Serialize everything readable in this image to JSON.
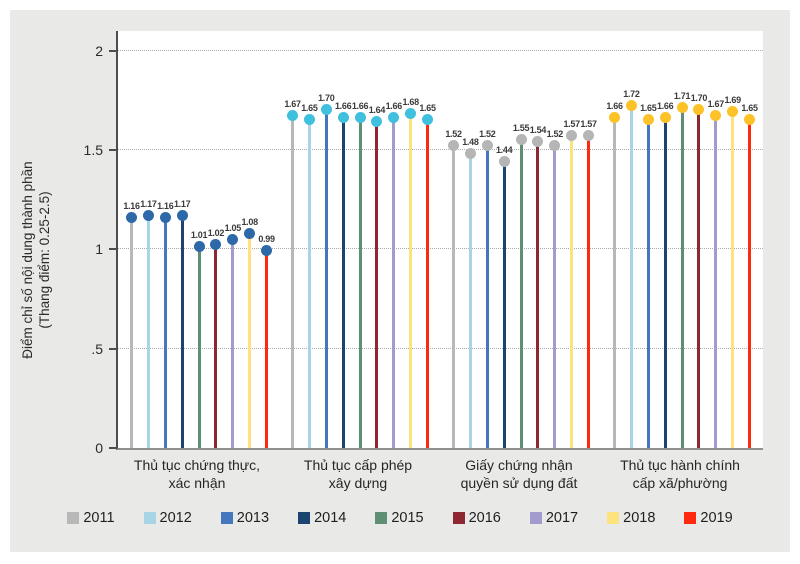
{
  "panel": {
    "background": "#e9e9e7"
  },
  "chart_data": {
    "type": "bar",
    "variant": "lollipop",
    "title": "",
    "xlabel": "",
    "ylabel_line1": "Điểm chỉ số nội dung thành phần",
    "ylabel_line2": "(Thang điểm: 0.25-2.5)",
    "ylim": [
      0,
      2.1
    ],
    "yticks": [
      {
        "label": "0",
        "value": 0
      },
      {
        "label": ".5",
        "value": 0.5
      },
      {
        "label": "1",
        "value": 1
      },
      {
        "label": "1.5",
        "value": 1.5
      },
      {
        "label": "2",
        "value": 2
      }
    ],
    "grid": "horizontal dotted lines at 0.5, 1, 1.5, 2",
    "legend_position": "bottom",
    "categories": [
      "Thủ tục chứng thực,\nxác nhận",
      "Thủ tục cấp phép\nxây dựng",
      "Giấy chứng nhận\nquyền sử dụng đất",
      "Thủ tục hành chính\ncấp xã/phường"
    ],
    "category_dot_colors": [
      "#2d68a8",
      "#3fc0dd",
      "#b5b5b5",
      "#fcc228"
    ],
    "series": [
      {
        "name": "2011",
        "color": "#b8b8b8",
        "values": [
          1.16,
          1.67,
          1.52,
          1.66
        ]
      },
      {
        "name": "2012",
        "color": "#a8d5e5",
        "values": [
          1.17,
          1.65,
          1.48,
          1.72
        ]
      },
      {
        "name": "2013",
        "color": "#4577be",
        "values": [
          1.16,
          1.7,
          1.52,
          1.65
        ]
      },
      {
        "name": "2014",
        "color": "#1b4570",
        "values": [
          1.17,
          1.66,
          1.44,
          1.66
        ]
      },
      {
        "name": "2015",
        "color": "#5e8f74",
        "values": [
          1.01,
          1.66,
          1.55,
          1.71
        ]
      },
      {
        "name": "2016",
        "color": "#8e2732",
        "values": [
          1.02,
          1.64,
          1.54,
          1.7
        ]
      },
      {
        "name": "2017",
        "color": "#a29bcd",
        "values": [
          1.05,
          1.66,
          1.52,
          1.67
        ]
      },
      {
        "name": "2018",
        "color": "#fce37e",
        "values": [
          1.08,
          1.68,
          1.57,
          1.69
        ]
      },
      {
        "name": "2019",
        "color": "#fd2a10",
        "values": [
          0.99,
          1.65,
          1.57,
          1.65
        ]
      }
    ]
  }
}
